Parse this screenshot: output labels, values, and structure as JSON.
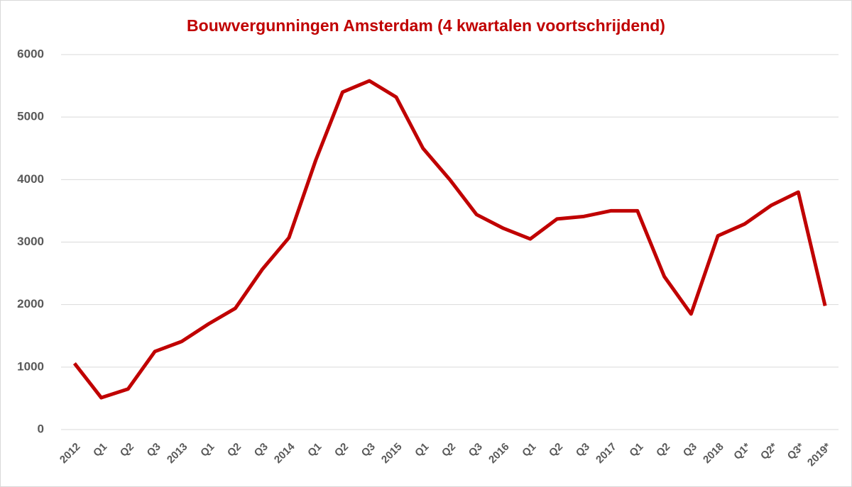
{
  "chart_data": {
    "type": "line",
    "title": "Bouwvergunningen Amsterdam (4 kwartalen voortschrijdend)",
    "categories": [
      "2012",
      "Q1",
      "Q2",
      "Q3",
      "2013",
      "Q1",
      "Q2",
      "Q3",
      "2014",
      "Q1",
      "Q2",
      "Q3",
      "2015",
      "Q1",
      "Q2",
      "Q3",
      "2016",
      "Q1",
      "Q2",
      "Q3",
      "2017",
      "Q1",
      "Q2",
      "Q3",
      "2018",
      "Q1*",
      "Q2*",
      "Q3*",
      "2019*"
    ],
    "series": [
      {
        "name": "Bouwvergunningen",
        "color": "#c00000",
        "values": [
          1060,
          510,
          650,
          1250,
          1410,
          1690,
          1940,
          2560,
          3070,
          4310,
          5400,
          5580,
          5320,
          4500,
          4000,
          3440,
          3220,
          3050,
          3370,
          3410,
          3500,
          3500,
          2450,
          1850,
          3100,
          3290,
          3590,
          3800,
          1980
        ]
      }
    ],
    "ylim": [
      0,
      6000
    ],
    "yticks": [
      0,
      1000,
      2000,
      3000,
      4000,
      5000,
      6000
    ],
    "grid": true
  }
}
